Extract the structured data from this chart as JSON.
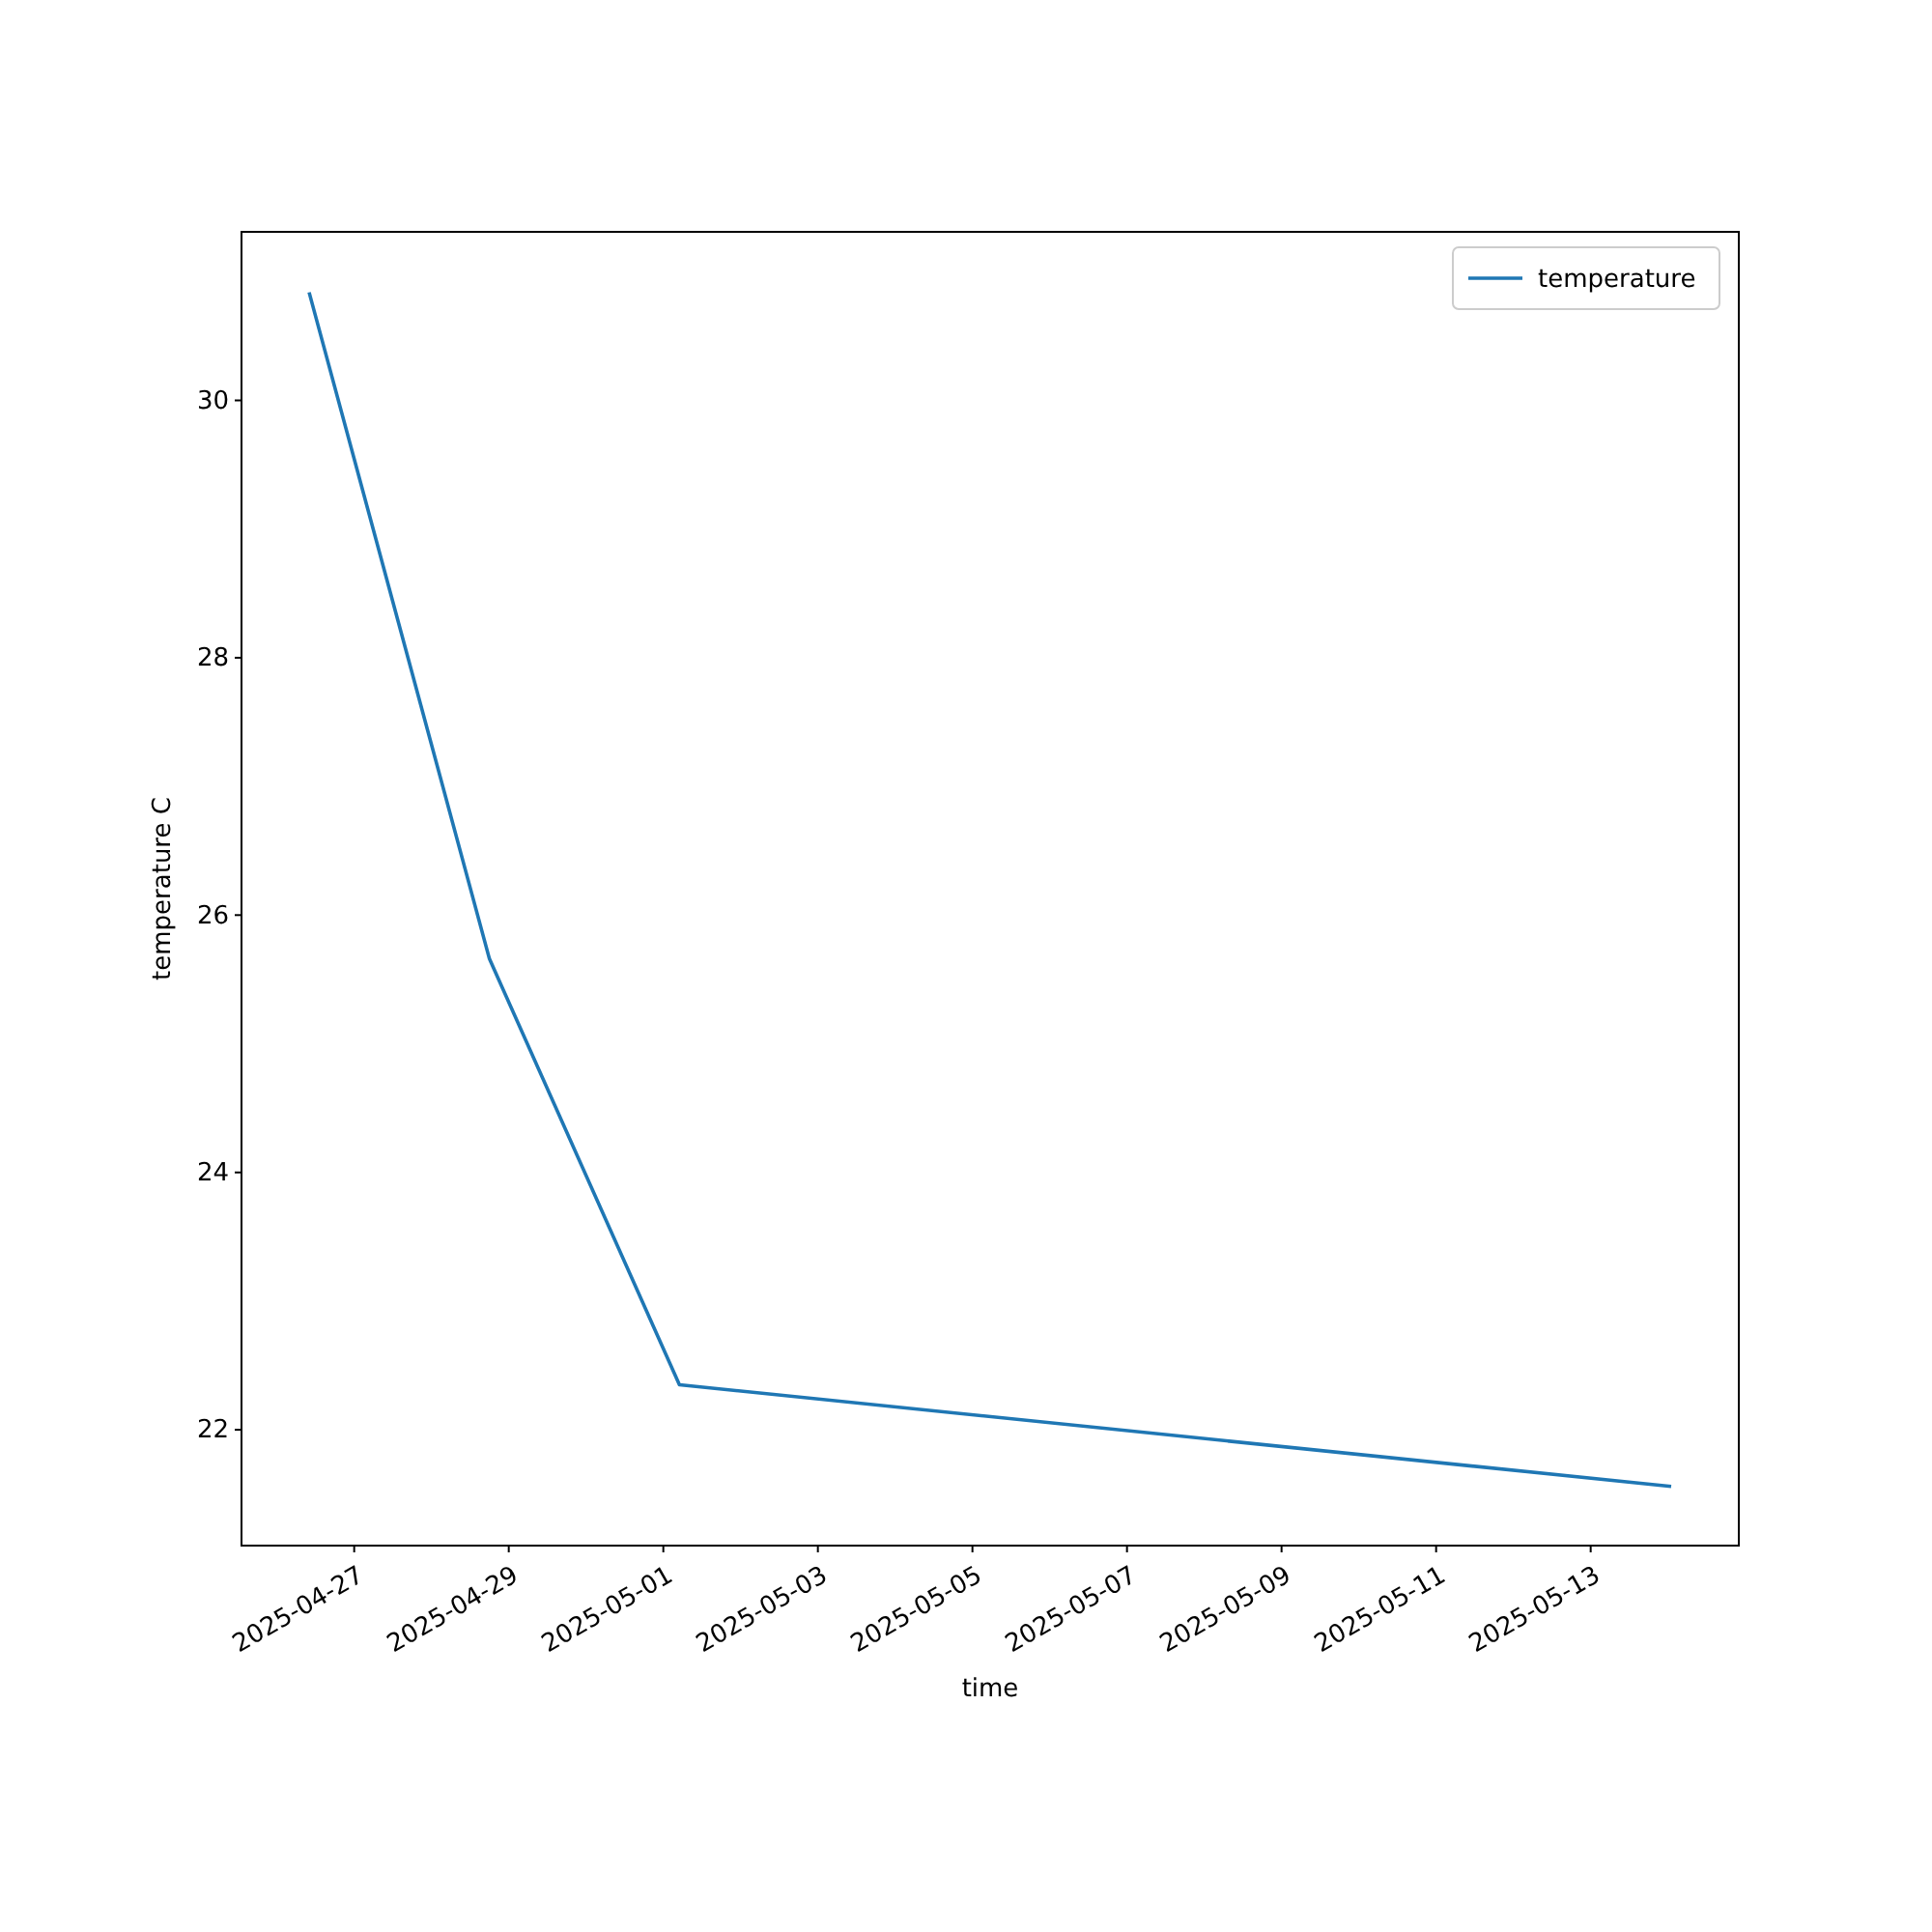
{
  "chart_data": {
    "type": "line",
    "xlabel": "time",
    "ylabel": "temperature C",
    "x": [
      "2025-04-26T10:00",
      "2025-04-28T18:00",
      "2025-05-01T05:00",
      "2025-05-14T01:00"
    ],
    "series": [
      {
        "name": "temperature",
        "color": "#1f77b4",
        "values": [
          30.84,
          25.66,
          22.35,
          21.56
        ]
      }
    ],
    "xlim": [
      "2025-04-25T13:00",
      "2025-05-14T22:00"
    ],
    "xticks": [
      "2025-04-27",
      "2025-04-29",
      "2025-05-01",
      "2025-05-03",
      "2025-05-05",
      "2025-05-07",
      "2025-05-09",
      "2025-05-11",
      "2025-05-13"
    ],
    "ylim": [
      21.1,
      31.31
    ],
    "yticks": [
      22,
      24,
      26,
      28,
      30
    ],
    "legend": "top right",
    "grid": false,
    "line_style": "solid",
    "marker": "none"
  }
}
